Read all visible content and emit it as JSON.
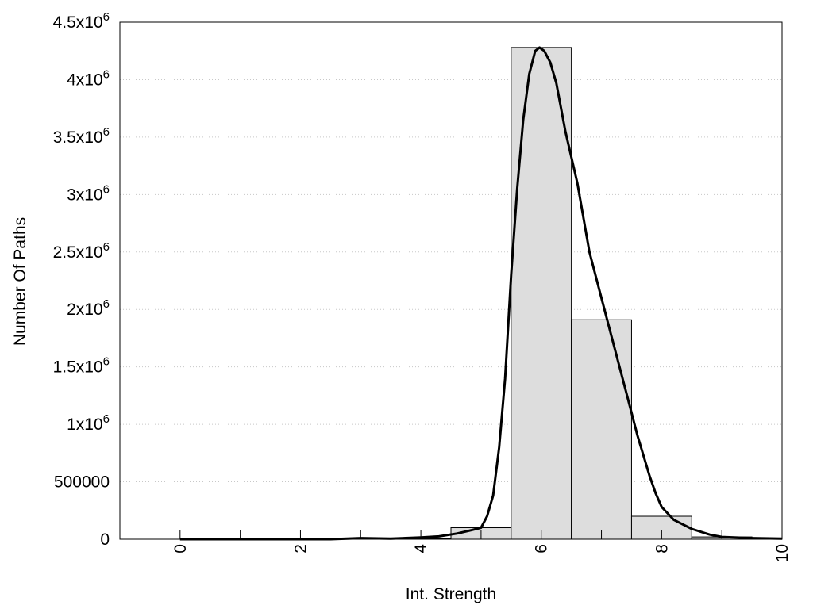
{
  "chart_data": {
    "type": "bar",
    "title": "",
    "xlabel": "Int. Strength",
    "ylabel": "Number Of Paths",
    "xlim": [
      -1,
      10
    ],
    "ylim": [
      0,
      4500000
    ],
    "grid": "horizontal dotted",
    "x_ticks": [
      {
        "value": 0,
        "label": "0"
      },
      {
        "value": 2,
        "label": "2"
      },
      {
        "value": 4,
        "label": "4"
      },
      {
        "value": 6,
        "label": "6"
      },
      {
        "value": 8,
        "label": "8"
      },
      {
        "value": 10,
        "label": "10"
      }
    ],
    "y_ticks": [
      {
        "value": 0,
        "mant": "0",
        "exp": ""
      },
      {
        "value": 500000,
        "mant": "500000",
        "exp": ""
      },
      {
        "value": 1000000,
        "mant": "1x10",
        "exp": "6"
      },
      {
        "value": 1500000,
        "mant": "1.5x10",
        "exp": "6"
      },
      {
        "value": 2000000,
        "mant": "2x10",
        "exp": "6"
      },
      {
        "value": 2500000,
        "mant": "2.5x10",
        "exp": "6"
      },
      {
        "value": 3000000,
        "mant": "3x10",
        "exp": "6"
      },
      {
        "value": 3500000,
        "mant": "3.5x10",
        "exp": "6"
      },
      {
        "value": 4000000,
        "mant": "4x10",
        "exp": "6"
      },
      {
        "value": 4500000,
        "mant": "4.5x10",
        "exp": "6"
      }
    ],
    "bars": {
      "x": [
        0,
        1,
        2,
        3,
        4,
        5,
        6,
        7,
        8,
        9,
        10
      ],
      "values": [
        0,
        0,
        0,
        0,
        5000,
        100000,
        4280000,
        1910000,
        200000,
        20000,
        5000
      ],
      "fill": "#dddddd",
      "stroke": "#000000"
    },
    "curve": {
      "x": [
        0,
        1,
        2,
        2.5,
        3,
        3.5,
        4,
        4.3,
        4.6,
        4.85,
        5,
        5.1,
        5.2,
        5.3,
        5.4,
        5.5,
        5.6,
        5.7,
        5.8,
        5.9,
        5.97,
        6.05,
        6.15,
        6.25,
        6.4,
        6.6,
        6.8,
        7,
        7.2,
        7.4,
        7.6,
        7.8,
        7.9,
        8,
        8.2,
        8.5,
        8.8,
        9,
        9.5,
        10
      ],
      "values": [
        0,
        0,
        0,
        0,
        10000,
        5000,
        15000,
        25000,
        50000,
        80000,
        100000,
        200000,
        380000,
        800000,
        1400000,
        2300000,
        3050000,
        3650000,
        4050000,
        4250000,
        4280000,
        4250000,
        4150000,
        3970000,
        3550000,
        3100000,
        2500000,
        2100000,
        1700000,
        1300000,
        900000,
        550000,
        400000,
        280000,
        170000,
        90000,
        40000,
        20000,
        10000,
        5000
      ],
      "color": "#000000"
    }
  }
}
